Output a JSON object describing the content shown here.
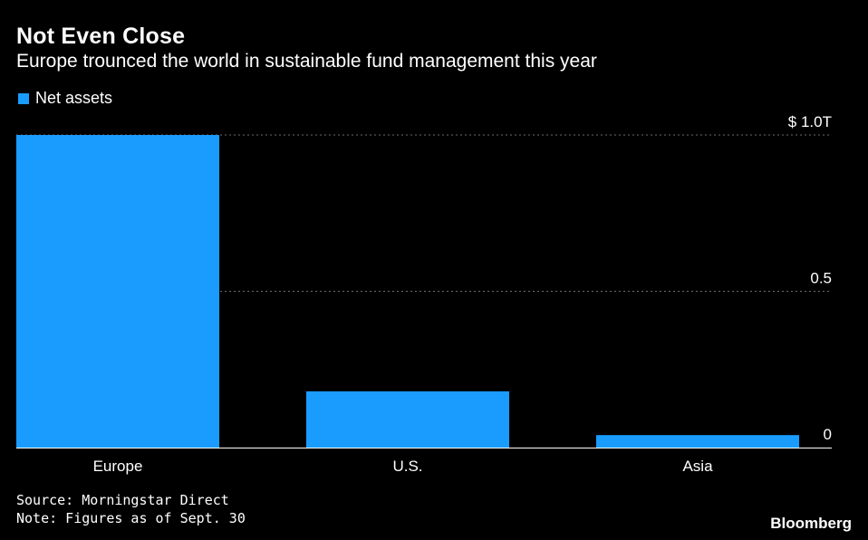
{
  "chart_data": {
    "type": "bar",
    "title": "Not Even Close",
    "subtitle": "Europe trounced the world in sustainable fund management this year",
    "legend": [
      {
        "label": "Net assets",
        "color": "#1a9cff"
      }
    ],
    "categories": [
      "Europe",
      "U.S.",
      "Asia"
    ],
    "values": [
      1.0,
      0.18,
      0.04
    ],
    "unit": "$ trillion",
    "ylim": [
      0,
      1.0
    ],
    "yticks": [
      0,
      0.5,
      1.0
    ],
    "ytick_labels": [
      "0",
      "0.5",
      "$ 1.0T"
    ],
    "grid": true
  },
  "footer": {
    "source": "Source: Morningstar Direct",
    "note": "Note: Figures as of Sept. 30",
    "brand": "Bloomberg"
  },
  "colors": {
    "bar": "#1a9cff",
    "grid": "#6b6b6b",
    "axis": "#ffffff",
    "background": "#000000"
  }
}
